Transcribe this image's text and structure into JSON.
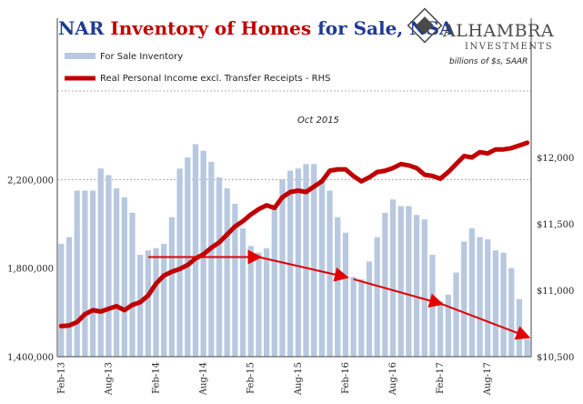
{
  "title": {
    "part1": "NAR ",
    "part2": "Inventory of Homes",
    "part3": " for Sale, NSA"
  },
  "logo": {
    "name": "ALHAMBRA",
    "sub": "INVESTMENTS"
  },
  "units_note": "billions of $s, SAAR",
  "colors": {
    "bars": "#b8c8e0",
    "line": "#c00000",
    "arrows": "#e00000",
    "title_blue": "#1f3a93"
  },
  "chart_data": {
    "type": "bar",
    "legend": [
      "For Sale Inventory",
      "Real Personal Income excl. Transfer Receipts - RHS"
    ],
    "annotation": "Oct 2015",
    "x_tick_labels": [
      "Feb-13",
      "Aug-13",
      "Feb-14",
      "Aug-14",
      "Feb-15",
      "Aug-15",
      "Feb-16",
      "Aug-16",
      "Feb-17",
      "Aug-17"
    ],
    "x_tick_indices": [
      0,
      6,
      12,
      18,
      24,
      30,
      36,
      42,
      48,
      54
    ],
    "y_left": {
      "ticks": [
        "1,400,000",
        "1,800,000",
        "2,200,000"
      ],
      "tick_values": [
        1400000,
        1800000,
        2200000
      ],
      "ylim": [
        1400000,
        2600000
      ]
    },
    "y_right": {
      "ticks": [
        "$10,500",
        "$11,000",
        "$11,500",
        "$12,000"
      ],
      "tick_values": [
        10500,
        11000,
        11500,
        12000
      ],
      "ylim": [
        10500,
        12500
      ]
    },
    "gridlines": [
      2200000,
      2600000
    ],
    "series": [
      {
        "name": "For Sale Inventory",
        "type": "bar",
        "values": [
          1910000,
          1940000,
          2150000,
          2150000,
          2150000,
          2250000,
          2220000,
          2160000,
          2120000,
          2050000,
          1860000,
          1880000,
          1890000,
          1910000,
          2030000,
          2250000,
          2300000,
          2360000,
          2330000,
          2280000,
          2210000,
          2160000,
          2090000,
          1980000,
          1900000,
          1870000,
          1890000,
          2070000,
          2200000,
          2240000,
          2250000,
          2270000,
          2270000,
          2200000,
          2150000,
          2030000,
          1960000,
          1760000,
          1750000,
          1830000,
          1940000,
          2050000,
          2110000,
          2080000,
          2080000,
          2040000,
          2020000,
          1860000,
          1650000,
          1680000,
          1780000,
          1920000,
          1980000,
          1940000,
          1930000,
          1880000,
          1870000,
          1800000,
          1660000,
          1480000
        ]
      },
      {
        "name": "Real Personal Income excl. Transfer Receipts - RHS",
        "type": "line",
        "values": [
          10730,
          10735,
          10760,
          10820,
          10850,
          10840,
          10860,
          10880,
          10850,
          10890,
          10910,
          10960,
          11050,
          11110,
          11140,
          11160,
          11190,
          11240,
          11270,
          11320,
          11360,
          11420,
          11480,
          11520,
          11570,
          11610,
          11640,
          11620,
          11700,
          11740,
          11750,
          11740,
          11780,
          11820,
          11900,
          11910,
          11910,
          11860,
          11820,
          11850,
          11890,
          11900,
          11920,
          11950,
          11940,
          11920,
          11870,
          11860,
          11840,
          11890,
          11950,
          12010,
          12000,
          12040,
          12030,
          12060,
          12060,
          12070,
          12090,
          12110
        ]
      }
    ],
    "arrows": [
      {
        "from_index": 11,
        "to_index": 25,
        "from_value": 1850000,
        "to_value": 1850000
      },
      {
        "from_index": 25,
        "to_index": 36,
        "from_value": 1850000,
        "to_value": 1760000
      },
      {
        "from_index": 37,
        "to_index": 48,
        "from_value": 1750000,
        "to_value": 1640000
      },
      {
        "from_index": 48,
        "to_index": 59,
        "from_value": 1640000,
        "to_value": 1490000
      }
    ]
  }
}
